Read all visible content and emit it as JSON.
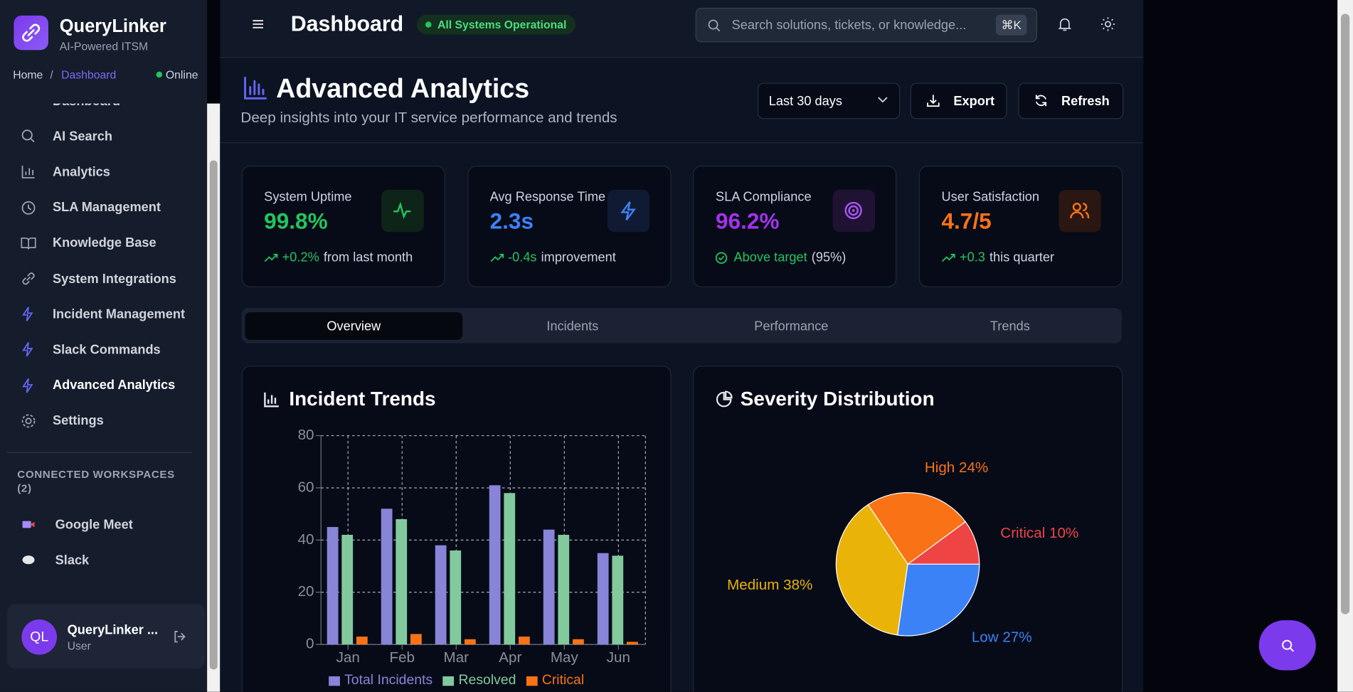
{
  "app": {
    "name": "QueryLinker",
    "tagline": "AI-Powered ITSM"
  },
  "breadcrumb": {
    "items": [
      "Home",
      "Dashboard"
    ],
    "separator": "/",
    "status": "Online"
  },
  "topbar": {
    "title": "Dashboard",
    "status": "All Systems Operational",
    "search_placeholder": "Search solutions, tickets, or knowledge...",
    "shortcut": "⌘K"
  },
  "sidebar": {
    "nav": [
      "Dashboard",
      "AI Search",
      "Analytics",
      "SLA Management",
      "Knowledge Base",
      "System Integrations",
      "Incident Management",
      "Slack Commands",
      "Advanced Analytics",
      "Settings"
    ],
    "workspaces_title": "CONNECTED WORKSPACES (2)",
    "workspaces": [
      "Google Meet",
      "Slack"
    ],
    "user": {
      "initials": "QL",
      "name": "QueryLinker ...",
      "role": "User"
    }
  },
  "page": {
    "title": "Advanced Analytics",
    "subtitle": "Deep insights into your IT service performance and trends",
    "range": "Last 30 days",
    "actions": [
      "Export",
      "Refresh"
    ]
  },
  "stats": [
    {
      "label": "System Uptime",
      "value": "99.8%",
      "change": "+0.2%",
      "note": "from last month"
    },
    {
      "label": "Avg Response Time",
      "value": "2.3s",
      "change": "-0.4s",
      "note": "improvement"
    },
    {
      "label": "SLA Compliance",
      "value": "96.2%",
      "change": "Above target",
      "note": "(95%)"
    },
    {
      "label": "User Satisfaction",
      "value": "4.7/5",
      "change": "+0.3",
      "note": "this quarter"
    }
  ],
  "tabs": [
    "Overview",
    "Incidents",
    "Performance",
    "Trends"
  ],
  "chart_data": [
    {
      "type": "bar",
      "title": "Incident Trends",
      "categories": [
        "Jan",
        "Feb",
        "Mar",
        "Apr",
        "May",
        "Jun"
      ],
      "series": [
        {
          "name": "Total Incidents",
          "color": "#8884d8",
          "values": [
            45,
            52,
            38,
            61,
            44,
            35
          ]
        },
        {
          "name": "Resolved",
          "color": "#82ca9d",
          "values": [
            42,
            48,
            36,
            58,
            42,
            34
          ]
        },
        {
          "name": "Critical",
          "color": "#f97316",
          "values": [
            3,
            4,
            2,
            3,
            2,
            1
          ]
        }
      ],
      "ylim": [
        0,
        80
      ],
      "yticks": [
        0,
        20,
        40,
        60,
        80
      ],
      "grid": true
    },
    {
      "type": "pie",
      "title": "Severity Distribution",
      "categories": [
        "Critical",
        "High",
        "Medium",
        "Low"
      ],
      "values": [
        10,
        24,
        38,
        27
      ],
      "value_labels": [
        "Critical 10%",
        "High 24%",
        "Medium 38%",
        "Low 27%"
      ],
      "colors": [
        "#ef4444",
        "#f97316",
        "#eab308",
        "#3b82f6"
      ]
    }
  ]
}
